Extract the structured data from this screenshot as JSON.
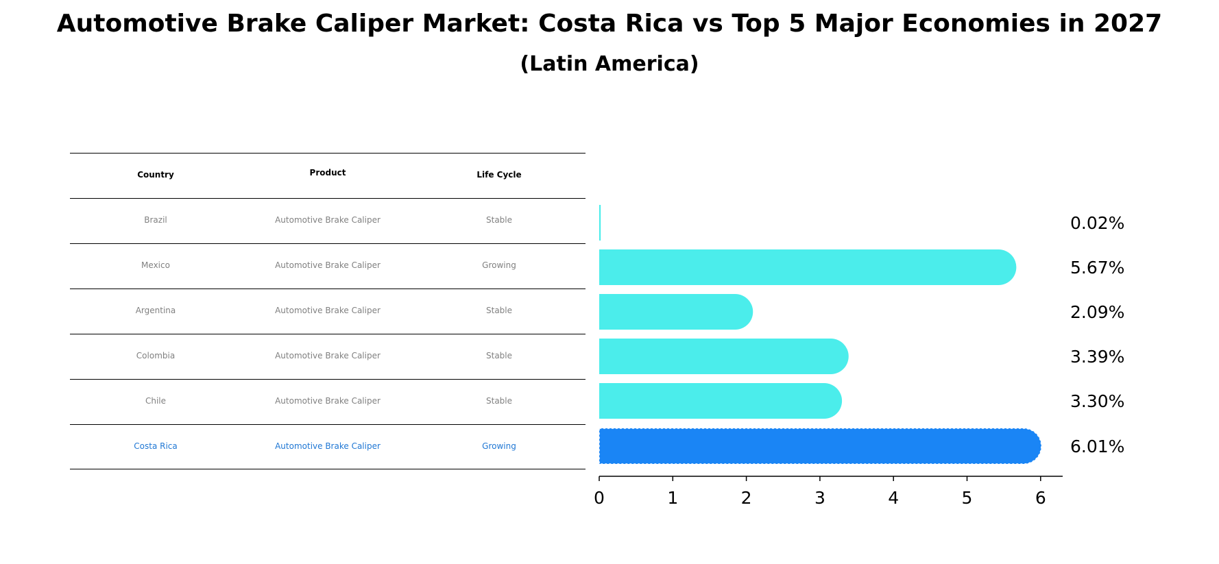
{
  "title": "Automotive Brake Caliper Market: Costa Rica vs Top 5 Major Economies in 2027",
  "subtitle": "(Latin America)",
  "table": {
    "headers": [
      "Country",
      "Product",
      "Life Cycle"
    ],
    "rows": [
      {
        "country": "Brazil",
        "product": "Automotive Brake Caliper",
        "lifecycle": "Stable"
      },
      {
        "country": "Mexico",
        "product": "Automotive Brake Caliper",
        "lifecycle": "Growing"
      },
      {
        "country": "Argentina",
        "product": "Automotive Brake Caliper",
        "lifecycle": "Stable"
      },
      {
        "country": "Colombia",
        "product": "Automotive Brake Caliper",
        "lifecycle": "Stable"
      },
      {
        "country": "Chile",
        "product": "Automotive Brake Caliper",
        "lifecycle": "Stable"
      },
      {
        "country": "Costa Rica",
        "product": "Automotive Brake Caliper",
        "lifecycle": "Growing"
      }
    ]
  },
  "chart_data": {
    "type": "bar",
    "orientation": "horizontal",
    "categories": [
      "Brazil",
      "Mexico",
      "Argentina",
      "Colombia",
      "Chile",
      "Costa Rica"
    ],
    "values": [
      0.02,
      5.67,
      2.09,
      3.39,
      3.3,
      6.01
    ],
    "value_labels": [
      "0.02%",
      "5.67%",
      "2.09%",
      "3.39%",
      "3.30%",
      "6.01%"
    ],
    "xticks": [
      "0",
      "1",
      "2",
      "3",
      "4",
      "5",
      "6"
    ],
    "xlim": [
      0,
      6.3
    ],
    "highlight_category": "Costa Rica",
    "colors": {
      "default": "#4BEDEB",
      "highlight": "#1A85F5",
      "highlight_text": "#1f77d4"
    }
  }
}
